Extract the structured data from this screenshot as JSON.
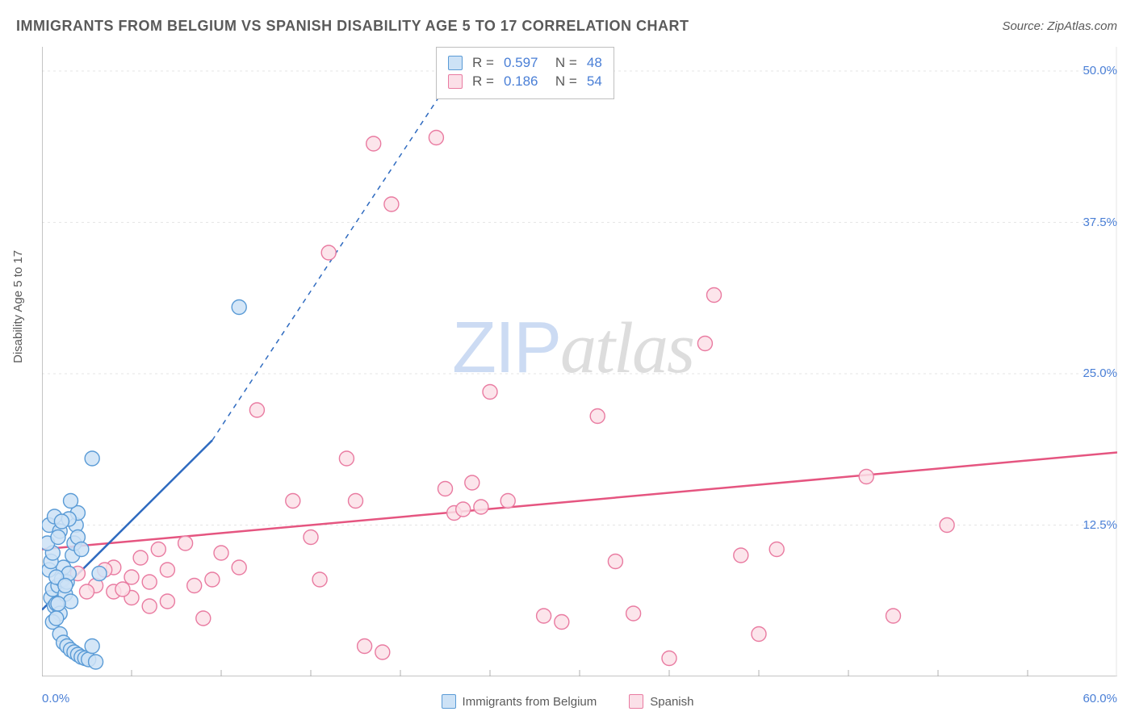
{
  "chart": {
    "type": "scatter",
    "title": "IMMIGRANTS FROM BELGIUM VS SPANISH DISABILITY AGE 5 TO 17 CORRELATION CHART",
    "source": "Source: ZipAtlas.com",
    "ylabel": "Disability Age 5 to 17",
    "xlim": [
      0,
      60
    ],
    "ylim": [
      0,
      52
    ],
    "xtick_anchors": {
      "min": "0.0%",
      "max": "60.0%"
    },
    "yticks": [
      12.5,
      25.0,
      37.5,
      50.0
    ],
    "ytick_labels": [
      "12.5%",
      "25.0%",
      "37.5%",
      "50.0%"
    ],
    "xtick_positions": [
      5,
      10,
      15,
      20,
      25,
      30,
      35,
      40,
      45,
      50,
      55
    ],
    "background_color": "#ffffff",
    "grid_color": "#e5e5e5",
    "axis_color": "#b0b0b0",
    "marker_radius": 9,
    "marker_stroke_width": 1.4,
    "watermark": {
      "zip": "ZIP",
      "atlas": "atlas"
    },
    "series": [
      {
        "name": "Immigrants from Belgium",
        "label": "Immigrants from Belgium",
        "color_fill": "#cde2f6",
        "color_stroke": "#5a9bd6",
        "line_color": "#2f6bc0",
        "R": "0.597",
        "N": "48",
        "regression": {
          "x1": 0,
          "y1": 5.5,
          "x2": 9.5,
          "y2": 19.5,
          "solid_to_x": 9.5,
          "dash_to_x": 24,
          "dash_to_y": 52
        },
        "points": [
          [
            0.5,
            6.5
          ],
          [
            0.6,
            7.2
          ],
          [
            0.7,
            5.8
          ],
          [
            0.8,
            6.0
          ],
          [
            0.9,
            7.5
          ],
          [
            1.0,
            5.2
          ],
          [
            1.1,
            8.0
          ],
          [
            1.2,
            9.0
          ],
          [
            1.3,
            6.8
          ],
          [
            1.4,
            7.8
          ],
          [
            1.5,
            8.5
          ],
          [
            1.6,
            6.2
          ],
          [
            1.7,
            10.0
          ],
          [
            1.8,
            11.0
          ],
          [
            1.9,
            12.5
          ],
          [
            2.0,
            13.5
          ],
          [
            0.6,
            4.5
          ],
          [
            0.8,
            4.8
          ],
          [
            1.0,
            3.5
          ],
          [
            1.2,
            2.8
          ],
          [
            1.4,
            2.5
          ],
          [
            1.6,
            2.2
          ],
          [
            1.8,
            2.0
          ],
          [
            2.0,
            1.8
          ],
          [
            2.2,
            1.6
          ],
          [
            2.4,
            1.5
          ],
          [
            2.6,
            1.4
          ],
          [
            2.8,
            2.5
          ],
          [
            3.0,
            1.2
          ],
          [
            3.2,
            8.5
          ],
          [
            1.5,
            13.0
          ],
          [
            1.6,
            14.5
          ],
          [
            2.8,
            18.0
          ],
          [
            2.0,
            11.5
          ],
          [
            2.2,
            10.5
          ],
          [
            0.4,
            8.8
          ],
          [
            0.5,
            9.5
          ],
          [
            0.6,
            10.2
          ],
          [
            0.3,
            11.0
          ],
          [
            0.4,
            12.5
          ],
          [
            0.7,
            13.2
          ],
          [
            1.0,
            12.0
          ],
          [
            11.0,
            30.5
          ],
          [
            0.9,
            11.5
          ],
          [
            1.1,
            12.8
          ],
          [
            0.8,
            8.2
          ],
          [
            0.9,
            6.0
          ],
          [
            1.3,
            7.5
          ]
        ]
      },
      {
        "name": "Spanish",
        "label": "Spanish",
        "color_fill": "#fbe0e8",
        "color_stroke": "#e97ba1",
        "line_color": "#e55580",
        "R": "0.186",
        "N": "54",
        "regression": {
          "x1": 0,
          "y1": 10.5,
          "x2": 60,
          "y2": 18.5,
          "solid_to_x": 60
        },
        "points": [
          [
            2.0,
            8.5
          ],
          [
            3.0,
            7.5
          ],
          [
            4.0,
            9.0
          ],
          [
            5.0,
            8.2
          ],
          [
            5.5,
            9.8
          ],
          [
            6.0,
            7.8
          ],
          [
            6.5,
            10.5
          ],
          [
            7.0,
            8.8
          ],
          [
            8.0,
            11.0
          ],
          [
            8.5,
            7.5
          ],
          [
            9.0,
            4.8
          ],
          [
            10.0,
            10.2
          ],
          [
            11.0,
            9.0
          ],
          [
            9.5,
            8.0
          ],
          [
            12.0,
            22.0
          ],
          [
            14.0,
            14.5
          ],
          [
            15.0,
            11.5
          ],
          [
            15.5,
            8.0
          ],
          [
            16.0,
            35.0
          ],
          [
            17.0,
            18.0
          ],
          [
            17.5,
            14.5
          ],
          [
            18.0,
            2.5
          ],
          [
            18.5,
            44.0
          ],
          [
            19.0,
            2.0
          ],
          [
            19.5,
            39.0
          ],
          [
            22.0,
            44.5
          ],
          [
            22.5,
            15.5
          ],
          [
            23.0,
            13.5
          ],
          [
            23.5,
            13.8
          ],
          [
            24.0,
            16.0
          ],
          [
            24.5,
            14.0
          ],
          [
            25.0,
            23.5
          ],
          [
            26.0,
            14.5
          ],
          [
            28.0,
            5.0
          ],
          [
            29.0,
            4.5
          ],
          [
            31.0,
            21.5
          ],
          [
            32.0,
            9.5
          ],
          [
            33.0,
            5.2
          ],
          [
            35.0,
            1.5
          ],
          [
            37.0,
            27.5
          ],
          [
            37.5,
            31.5
          ],
          [
            39.0,
            10.0
          ],
          [
            40.0,
            3.5
          ],
          [
            41.0,
            10.5
          ],
          [
            46.0,
            16.5
          ],
          [
            47.5,
            5.0
          ],
          [
            50.5,
            12.5
          ],
          [
            4.0,
            7.0
          ],
          [
            5.0,
            6.5
          ],
          [
            6.0,
            5.8
          ],
          [
            7.0,
            6.2
          ],
          [
            3.5,
            8.8
          ],
          [
            2.5,
            7.0
          ],
          [
            4.5,
            7.2
          ]
        ]
      }
    ],
    "bottom_legend": [
      {
        "label": "Immigrants from Belgium",
        "fill": "#cde2f6",
        "stroke": "#5a9bd6"
      },
      {
        "label": "Spanish",
        "fill": "#fbe0e8",
        "stroke": "#e97ba1"
      }
    ]
  }
}
